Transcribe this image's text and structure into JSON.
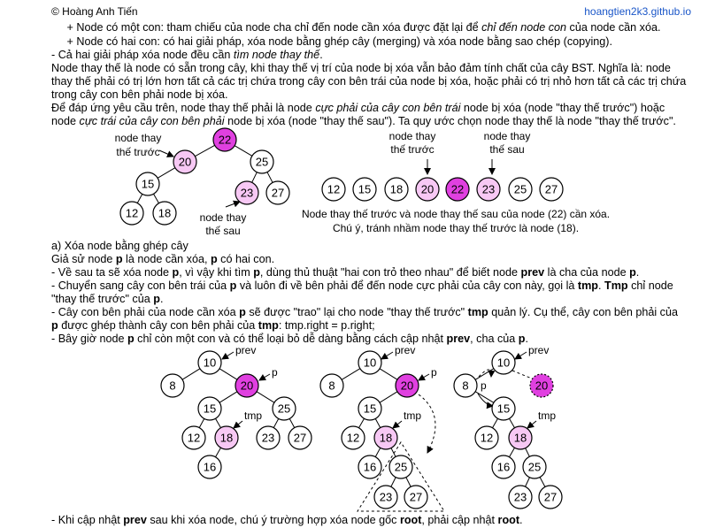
{
  "header": {
    "author": "© Hoàng Anh Tiến",
    "site": "hoangtien2k3.github.io"
  },
  "lines": [
    [
      {
        "t": "     + Node có một con: tham chiếu của node cha chỉ đến node cần xóa được đặt lại để "
      },
      {
        "t": "chỉ đến node con",
        "i": true
      },
      {
        "t": " của node cần xóa."
      }
    ],
    [
      {
        "t": "     + Node có hai con: có hai giải pháp, xóa node bằng ghép cây (merging) và xóa node bằng sao chép (copying)."
      }
    ],
    [
      {
        "t": "- Cả hai giải pháp xóa node đều cần "
      },
      {
        "t": "tìm node thay thế",
        "i": true
      },
      {
        "t": "."
      }
    ],
    [
      {
        "t": "Node thay thế là node có sẵn trong cây, khi thay thế vị trí của node bị xóa vẫn bảo đảm tính chất của cây BST. Nghĩa là: node"
      }
    ],
    [
      {
        "t": "thay thế phải có trị lớn hơn tất cả các trị chứa trong cây con bên trái của node bị xóa, hoặc phải có trị nhỏ hơn tất cả các trị chứa"
      }
    ],
    [
      {
        "t": "trong cây con bên phải node bị xóa."
      }
    ],
    [
      {
        "t": "Để đáp ứng yêu cầu trên, node thay thế phải là node "
      },
      {
        "t": "cực phải của cây con bên trái",
        "i": true
      },
      {
        "t": " node bị xóa (node \"thay thế trước\") hoặc"
      }
    ],
    [
      {
        "t": "node "
      },
      {
        "t": "cực trái của cây con bên phải",
        "i": true
      },
      {
        "t": " node bị xóa (node \"thay thế sau\"). Ta quy ước chọn node thay thế là node \"thay thế trước\"."
      }
    ],
    [
      {
        "t": "a) Xóa node bằng ghép cây"
      }
    ],
    [
      {
        "t": "Giả sử node "
      },
      {
        "t": "p",
        "b": true
      },
      {
        "t": " là node cần xóa, "
      },
      {
        "t": "p",
        "b": true
      },
      {
        "t": " có hai con."
      }
    ],
    [
      {
        "t": "- Về sau ta sẽ xóa node "
      },
      {
        "t": "p",
        "b": true
      },
      {
        "t": ", vì vậy khi tìm "
      },
      {
        "t": "p",
        "b": true
      },
      {
        "t": ", dùng thủ thuật \"hai con trỏ theo nhau\" để biết node "
      },
      {
        "t": "prev",
        "b": true
      },
      {
        "t": " là cha của node "
      },
      {
        "t": "p",
        "b": true
      },
      {
        "t": "."
      }
    ],
    [
      {
        "t": "- Chuyển sang cây con bên trái của "
      },
      {
        "t": "p",
        "b": true
      },
      {
        "t": " và luôn đi về bên phải để đến node cực phải của cây con này, gọi là "
      },
      {
        "t": "tmp",
        "b": true
      },
      {
        "t": ". "
      },
      {
        "t": "Tmp",
        "b": true
      },
      {
        "t": " chỉ node"
      }
    ],
    [
      {
        "t": "\"thay thế trước\" của "
      },
      {
        "t": "p",
        "b": true
      },
      {
        "t": "."
      }
    ],
    [
      {
        "t": "- Cây con bên phải của node cần xóa "
      },
      {
        "t": "p",
        "b": true
      },
      {
        "t": " sẽ được \"trao\" lại cho node \"thay thế trước\" "
      },
      {
        "t": "tmp",
        "b": true
      },
      {
        "t": " quản lý. Cụ thể, cây con bên phải của"
      }
    ],
    [
      {
        "t": "p",
        "b": true
      },
      {
        "t": " được ghép thành cây con bên phải của "
      },
      {
        "t": "tmp",
        "b": true
      },
      {
        "t": ": tmp.right = p.right;"
      }
    ],
    [
      {
        "t": "- Bây giờ node "
      },
      {
        "t": "p",
        "b": true
      },
      {
        "t": " chỉ còn một con và có thể loại bỏ dễ dàng bằng cách cập nhật "
      },
      {
        "t": "prev",
        "b": true
      },
      {
        "t": ", cha của "
      },
      {
        "t": "p",
        "b": true
      },
      {
        "t": "."
      }
    ],
    [
      {
        "t": "- Khi cập nhật "
      },
      {
        "t": "prev",
        "b": true
      },
      {
        "t": " sau khi xóa node, chú ý trường hợp xóa node gốc "
      },
      {
        "t": "root",
        "b": true
      },
      {
        "t": ", phải cập nhật "
      },
      {
        "t": "root",
        "b": true
      },
      {
        "t": "."
      }
    ]
  ],
  "colors": {
    "magenta": "#e040e0",
    "light": "#f7c8f4",
    "white": "#ffffff",
    "link": "#1a56c8"
  },
  "fig1": {
    "nodes": [
      {
        "v": "22",
        "f": "magenta"
      },
      {
        "v": "20",
        "f": "light"
      },
      {
        "v": "25",
        "f": "white"
      },
      {
        "v": "15",
        "f": "white"
      },
      {
        "v": "23",
        "f": "light"
      },
      {
        "v": "27",
        "f": "white"
      },
      {
        "v": "12",
        "f": "white"
      },
      {
        "v": "18",
        "f": "white"
      }
    ],
    "labels": [
      "node thay",
      "thế trước",
      "node thay",
      "thế sau"
    ]
  },
  "fig2": {
    "nodes": [
      {
        "v": "12",
        "f": "white"
      },
      {
        "v": "15",
        "f": "white"
      },
      {
        "v": "18",
        "f": "white"
      },
      {
        "v": "20",
        "f": "light"
      },
      {
        "v": "22",
        "f": "magenta"
      },
      {
        "v": "23",
        "f": "light"
      },
      {
        "v": "25",
        "f": "white"
      },
      {
        "v": "27",
        "f": "white"
      }
    ],
    "labels": [
      "node thay",
      "thế trước",
      "node thay",
      "thế sau"
    ],
    "caption1": "Node thay thế trước và node thay thế sau của node (22) cần xóa.",
    "caption2": "Chú ý, tránh nhầm node thay thế trước là node (18)."
  },
  "trees": [
    {
      "nodes": [
        {
          "v": "10",
          "f": "white"
        },
        {
          "v": "8",
          "f": "white"
        },
        {
          "v": "20",
          "f": "magenta"
        },
        {
          "v": "15",
          "f": "white"
        },
        {
          "v": "25",
          "f": "white"
        },
        {
          "v": "12",
          "f": "white"
        },
        {
          "v": "18",
          "f": "light"
        },
        {
          "v": "23",
          "f": "white"
        },
        {
          "v": "27",
          "f": "white"
        },
        {
          "v": "16",
          "f": "white"
        }
      ],
      "labels": [
        "prev",
        "p",
        "tmp"
      ]
    },
    {
      "nodes": [
        {
          "v": "10",
          "f": "white"
        },
        {
          "v": "8",
          "f": "white"
        },
        {
          "v": "20",
          "f": "magenta"
        },
        {
          "v": "15",
          "f": "white"
        },
        {
          "v": "12",
          "f": "white"
        },
        {
          "v": "18",
          "f": "light"
        },
        {
          "v": "16",
          "f": "white"
        },
        {
          "v": "25",
          "f": "white"
        },
        {
          "v": "23",
          "f": "white"
        },
        {
          "v": "27",
          "f": "white"
        }
      ],
      "labels": [
        "prev",
        "p",
        "tmp"
      ]
    },
    {
      "nodes": [
        {
          "v": "10",
          "f": "white"
        },
        {
          "v": "8",
          "f": "white"
        },
        {
          "v": "20",
          "f": "magenta"
        },
        {
          "v": "15",
          "f": "white"
        },
        {
          "v": "12",
          "f": "white"
        },
        {
          "v": "18",
          "f": "light"
        },
        {
          "v": "16",
          "f": "white"
        },
        {
          "v": "25",
          "f": "white"
        },
        {
          "v": "23",
          "f": "white"
        },
        {
          "v": "27",
          "f": "white"
        }
      ],
      "labels": [
        "prev",
        "p",
        "tmp"
      ]
    }
  ]
}
